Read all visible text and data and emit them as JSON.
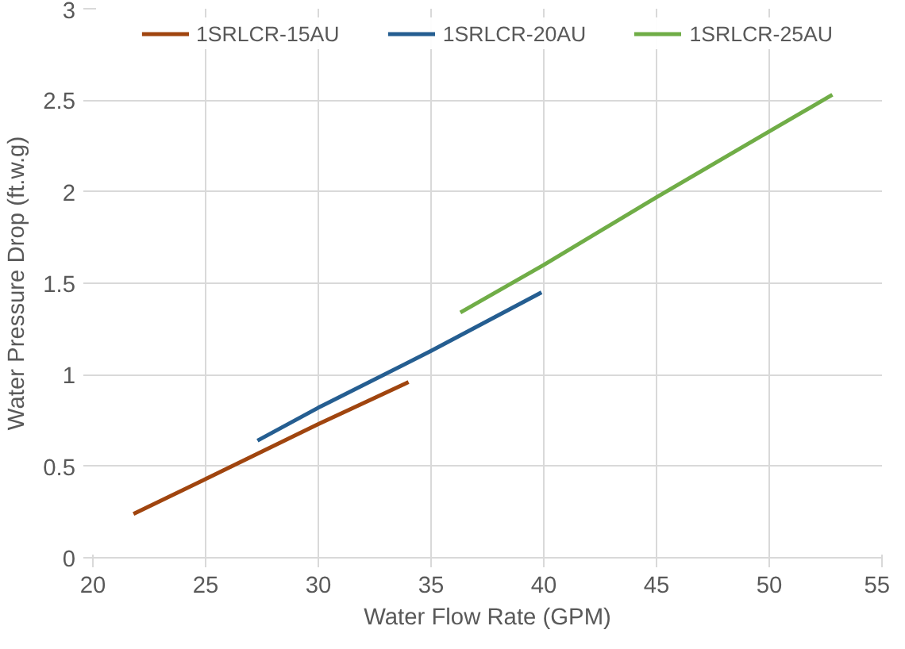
{
  "chart_data": {
    "type": "line",
    "xlabel": "Water Flow Rate (GPM)",
    "ylabel": "Water Pressure Drop (ft.w.g)",
    "xlim": [
      20,
      55
    ],
    "xticks": [
      20,
      25,
      30,
      35,
      40,
      45,
      50,
      55
    ],
    "ylim": [
      0,
      3
    ],
    "yticks": [
      0,
      0.5,
      1,
      1.5,
      2,
      2.5,
      3
    ],
    "grid": true,
    "legend": "top",
    "marker": "none",
    "line_style": "solid",
    "series": [
      {
        "name": "1SRLCR-15AU",
        "color": "#a0450f",
        "x": [
          21.8,
          25,
          30,
          34
        ],
        "values": [
          0.24,
          0.43,
          0.73,
          0.96
        ]
      },
      {
        "name": "1SRLCR-20AU",
        "color": "#255e91",
        "x": [
          27.3,
          30,
          35,
          39.9
        ],
        "values": [
          0.64,
          0.82,
          1.13,
          1.45
        ]
      },
      {
        "name": "1SRLCR-25AU",
        "color": "#70ad47",
        "x": [
          36.3,
          40,
          45,
          50,
          52.8
        ],
        "values": [
          1.34,
          1.6,
          1.97,
          2.33,
          2.53
        ]
      }
    ]
  }
}
